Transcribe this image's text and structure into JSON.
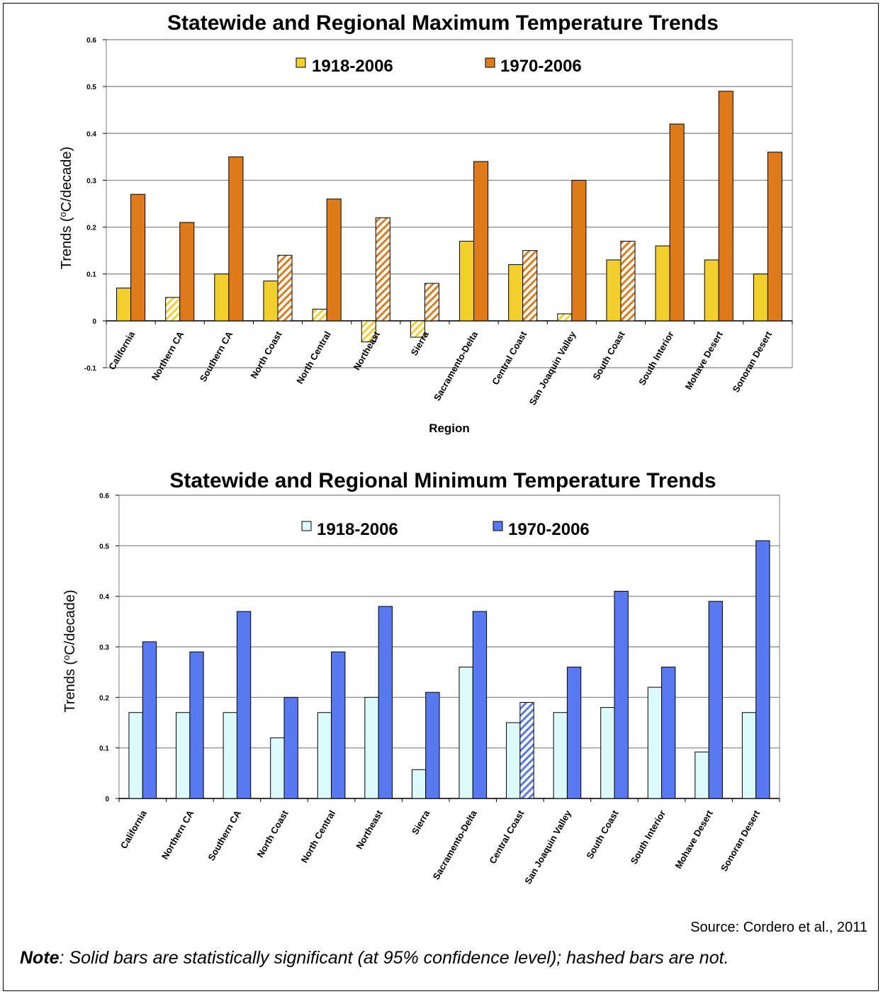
{
  "figure": {
    "source": "Source:  Cordero et al., 2011",
    "note_bold": "Note",
    "note_text": ":  Solid bars are statistically significant (at 95% confidence level); hashed bars are not."
  },
  "colors": {
    "max_1918": "#f2cf2c",
    "max_1970": "#e07b1b",
    "min_1918": "#ddfafa",
    "min_1970": "#5879f0"
  },
  "chart_data": [
    {
      "type": "bar",
      "title": "Statewide and Regional Maximum Temperature Trends",
      "xlabel": "Region",
      "ylabel": "Trends (°C/decade)",
      "ylim": [
        -0.1,
        0.6
      ],
      "yticks": [
        -0.1,
        0,
        0.1,
        0.2,
        0.3,
        0.4,
        0.5,
        0.6
      ],
      "grid": true,
      "legend": "top-center",
      "categories": [
        "California",
        "Northern CA",
        "Southern CA",
        "North Coast",
        "North Central",
        "Northeast",
        "Sierra",
        "Sacramento-Delta",
        "Central Coast",
        "San Joaquin Valley",
        "South Coast",
        "South Interior",
        "Mohave Desert",
        "Sonoran Desert"
      ],
      "series": [
        {
          "name": "1918-2006",
          "color": "#f2cf2c",
          "values": [
            0.07,
            0.05,
            0.1,
            0.085,
            0.025,
            -0.045,
            -0.035,
            0.17,
            0.12,
            0.015,
            0.13,
            0.16,
            0.13,
            0.1
          ],
          "hashed": [
            false,
            true,
            false,
            false,
            true,
            true,
            true,
            false,
            false,
            true,
            false,
            false,
            false,
            false
          ]
        },
        {
          "name": "1970-2006",
          "color": "#e07b1b",
          "values": [
            0.27,
            0.21,
            0.35,
            0.14,
            0.26,
            0.22,
            0.08,
            0.34,
            0.15,
            0.3,
            0.17,
            0.42,
            0.49,
            0.36
          ],
          "hashed": [
            false,
            false,
            false,
            true,
            false,
            true,
            true,
            false,
            true,
            false,
            true,
            false,
            false,
            false
          ]
        }
      ]
    },
    {
      "type": "bar",
      "title": "Statewide and Regional Minimum Temperature Trends",
      "xlabel": "",
      "ylabel": "Trends (°C/decade)",
      "ylim": [
        0,
        0.6
      ],
      "yticks": [
        0,
        0.1,
        0.2,
        0.3,
        0.4,
        0.5,
        0.6
      ],
      "grid": true,
      "legend": "top-center",
      "categories": [
        "California",
        "Northern CA",
        "Southern CA",
        "North Coast",
        "North Central",
        "Northeast",
        "Sierra",
        "Sacramento-Delta",
        "Central Coast",
        "San Joaquin Valley",
        "South Coast",
        "South Interior",
        "Mohave Desert",
        "Sonoran Desert"
      ],
      "series": [
        {
          "name": "1918-2006",
          "color": "#ddfafa",
          "values": [
            0.17,
            0.17,
            0.17,
            0.12,
            0.17,
            0.2,
            0.057,
            0.26,
            0.15,
            0.17,
            0.18,
            0.22,
            0.092,
            0.17
          ],
          "hashed": [
            false,
            false,
            false,
            false,
            false,
            false,
            false,
            false,
            false,
            false,
            false,
            false,
            false,
            false
          ]
        },
        {
          "name": "1970-2006",
          "color": "#5879f0",
          "values": [
            0.31,
            0.29,
            0.37,
            0.2,
            0.29,
            0.38,
            0.21,
            0.37,
            0.19,
            0.26,
            0.41,
            0.26,
            0.39,
            0.51
          ],
          "hashed": [
            false,
            false,
            false,
            false,
            false,
            false,
            false,
            false,
            true,
            false,
            false,
            false,
            false,
            false
          ]
        }
      ]
    }
  ]
}
